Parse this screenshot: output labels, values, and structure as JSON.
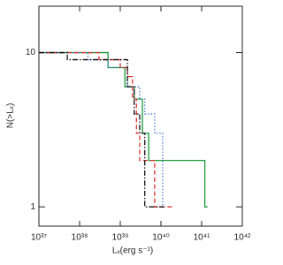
{
  "chart_data": {
    "type": "step",
    "xlabel": "Lₓ(erg s⁻¹)",
    "ylabel": "N(>Lₓ)",
    "xlog": true,
    "ylog": true,
    "xlim": [
      1e+37,
      1e+42
    ],
    "ylim": [
      0.75,
      20
    ],
    "xticks": [
      {
        "value": 1e+37,
        "label": "10³⁷"
      },
      {
        "value": 1e+38,
        "label": "10³⁸"
      },
      {
        "value": 1e+39,
        "label": "10³⁹"
      },
      {
        "value": 1e+40,
        "label": "10⁴⁰"
      },
      {
        "value": 1e+41,
        "label": "10⁴¹"
      },
      {
        "value": 1e+42,
        "label": "10⁴²"
      }
    ],
    "yticks": [
      1,
      10
    ],
    "series": [
      {
        "color": "#1a9a3a",
        "dash": "solid",
        "x": [
          1e+37,
          5e+38,
          1.3e+39,
          2.2e+39,
          3.5e+39,
          5e+39,
          1.2e+41,
          1.4e+41
        ],
        "values": [
          10,
          8,
          6,
          5,
          3,
          2,
          1,
          1
        ]
      },
      {
        "color": "#4a7fd0",
        "dash": "dotted",
        "x": [
          1e+37,
          1.6e+38,
          5e+38,
          1.5e+39,
          3e+39,
          4e+39,
          7e+39,
          1.1e+40,
          1.2e+40
        ],
        "values": [
          10,
          9,
          8,
          6,
          5,
          4,
          3,
          1,
          1
        ]
      },
      {
        "color": "#e03030",
        "dash": "dashed",
        "x": [
          1e+37,
          3e+38,
          1e+39,
          1.5e+39,
          2e+39,
          2.5e+39,
          3e+39,
          7e+39,
          1.3e+40,
          1.9e+40
        ],
        "values": [
          10,
          9,
          8,
          7,
          5,
          3,
          2,
          1,
          1,
          1
        ]
      },
      {
        "color": "#111111",
        "dash": "dashdot",
        "x": [
          1e+37,
          5e+37,
          1.5e+39,
          2.2e+39,
          3e+39,
          4e+39,
          1.2e+40
        ],
        "values": [
          10,
          9,
          6,
          4,
          3,
          1,
          1
        ]
      }
    ]
  }
}
